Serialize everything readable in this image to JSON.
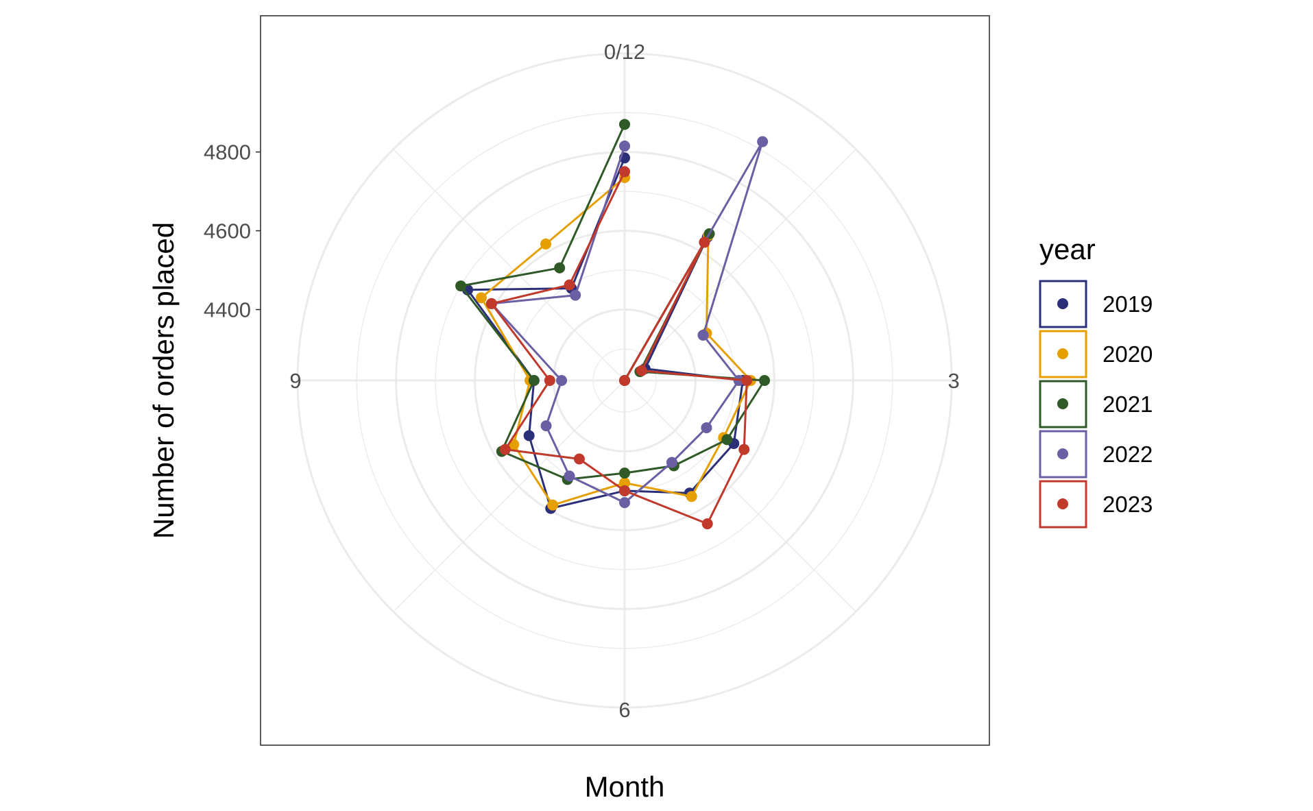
{
  "chart_data": {
    "type": "line",
    "coord": "polar",
    "xlabel": "Month",
    "ylabel": "Number of orders placed",
    "x_ticks": [
      "0/12",
      "3",
      "6",
      "9"
    ],
    "y_ticks": [
      4400,
      4600,
      4800
    ],
    "y_axis_min": 4220,
    "y_axis_max": 5050,
    "grid": true,
    "legend_title": "year",
    "legend_position": "right",
    "x": [
      0,
      1,
      2,
      3,
      4,
      5,
      6,
      7,
      8,
      9,
      10,
      11,
      12
    ],
    "series": [
      {
        "name": "2019",
        "color": "#2b2f78",
        "values": [
          4220,
          4640,
          4280,
          4520,
          4540,
          4550,
          4500,
          4595,
          4500,
          4450,
          4680,
          4490,
          4785
        ]
      },
      {
        "name": "2020",
        "color": "#e69f00",
        "values": [
          4220,
          4645,
          4460,
          4540,
          4510,
          4560,
          4480,
          4585,
          4545,
          4460,
          4640,
          4620,
          4735
        ]
      },
      {
        "name": "2021",
        "color": "#2f5a28",
        "values": [
          4220,
          4650,
          4265,
          4575,
          4520,
          4470,
          4455,
          4510,
          4580,
          4450,
          4700,
          4550,
          4870
        ]
      },
      {
        "name": "2022",
        "color": "#6b5fa3",
        "values": [
          4220,
          4920,
          4450,
          4510,
          4460,
          4460,
          4530,
          4500,
          4450,
          4380,
          4610,
          4470,
          4815
        ]
      },
      {
        "name": "2023",
        "color": "#c0392b",
        "values": [
          4220,
          4625,
          4270,
          4530,
          4570,
          4640,
          4500,
          4450,
          4570,
          4410,
          4610,
          4500,
          4750
        ]
      }
    ]
  }
}
